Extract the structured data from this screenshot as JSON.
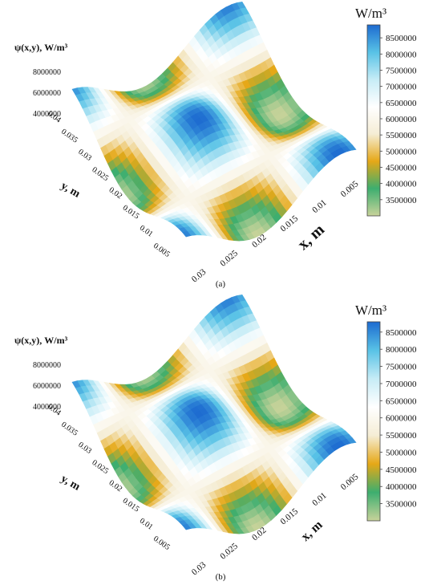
{
  "chart_data": [
    {
      "type": "surface3d",
      "panel_label": "(a)",
      "zlabel": "ψ(x,y), W/m³",
      "xlabel": "x, m",
      "ylabel": "y, m",
      "colorbar_unit": "W/m³",
      "z_ticks": [
        "8000000",
        "6000000",
        "4000000"
      ],
      "y_ticks": [
        "0.04",
        "0.035",
        "0.03",
        "0.025",
        "0.02",
        "0.015",
        "0.01",
        "0.005"
      ],
      "x_ticks": [
        "0.03",
        "0.025",
        "0.02",
        "0.015",
        "0.01",
        "0.005"
      ],
      "colorbar_ticks": [
        "8500000",
        "8000000",
        "7500000",
        "7000000",
        "6500000",
        "6000000",
        "5500000",
        "5000000",
        "4500000",
        "4000000",
        "3500000"
      ],
      "colorbar_range": [
        3000000,
        8900000
      ],
      "x_range": [
        0.005,
        0.03
      ],
      "y_range": [
        0.005,
        0.04
      ],
      "colors": [
        "#c8d39a",
        "#3dae6f",
        "#e6a817",
        "#f5edd5",
        "#ffffff",
        "#c6ecf6",
        "#58c2e6",
        "#1d6bd0"
      ]
    },
    {
      "type": "surface3d",
      "panel_label": "(b)",
      "zlabel": "ψ(x,y), W/m³",
      "xlabel": "x, m",
      "ylabel": "y, m",
      "colorbar_unit": "W/m³",
      "z_ticks": [
        "8000000",
        "6000000",
        "4000000"
      ],
      "y_ticks": [
        "0.04",
        "0.035",
        "0.03",
        "0.025",
        "0.02",
        "0.015",
        "0.01",
        "0.005"
      ],
      "x_ticks": [
        "0.03",
        "0.025",
        "0.02",
        "0.015",
        "0.01",
        "0.005"
      ],
      "colorbar_ticks": [
        "8500000",
        "8000000",
        "7500000",
        "7000000",
        "6500000",
        "6000000",
        "5500000",
        "5000000",
        "4500000",
        "4000000",
        "3500000"
      ],
      "colorbar_range": [
        3000000,
        8800000
      ],
      "x_range": [
        0.005,
        0.03
      ],
      "y_range": [
        0.005,
        0.04
      ],
      "colors": [
        "#c8d39a",
        "#3dae6f",
        "#e6a817",
        "#f5edd5",
        "#ffffff",
        "#c6ecf6",
        "#58c2e6",
        "#1d6bd0"
      ]
    }
  ]
}
